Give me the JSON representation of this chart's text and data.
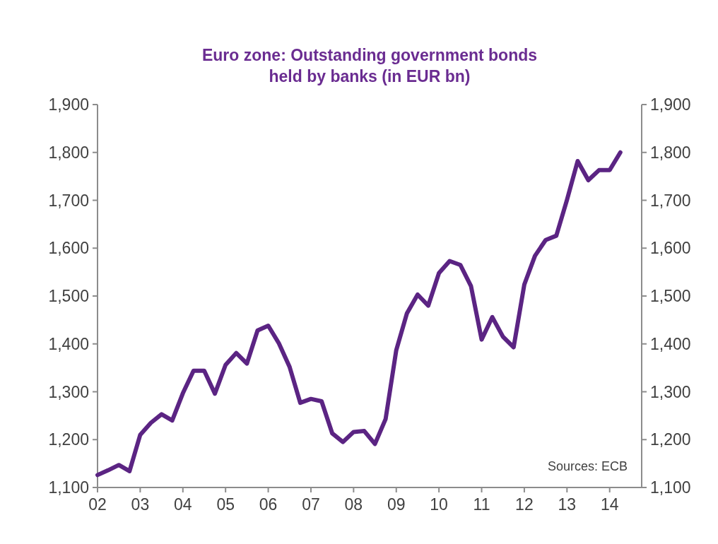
{
  "chart_data": {
    "type": "line",
    "title": "Euro zone: Outstanding government bonds held by banks (in EUR bn)",
    "x": [
      2002,
      2002.25,
      2002.5,
      2002.75,
      2003,
      2003.25,
      2003.5,
      2003.75,
      2004,
      2004.25,
      2004.5,
      2004.75,
      2005,
      2005.25,
      2005.5,
      2005.75,
      2006,
      2006.25,
      2006.5,
      2006.75,
      2007,
      2007.25,
      2007.5,
      2007.75,
      2008,
      2008.25,
      2008.5,
      2008.75,
      2009,
      2009.25,
      2009.5,
      2009.75,
      2010,
      2010.25,
      2010.5,
      2010.75,
      2011,
      2011.25,
      2011.5,
      2011.75,
      2012,
      2012.25,
      2012.5,
      2012.75,
      2013,
      2013.25,
      2013.5,
      2013.75,
      2014,
      2014.25
    ],
    "series": [
      {
        "color": "#5b2483",
        "values": [
          1126,
          1136,
          1147,
          1134,
          1210,
          1235,
          1253,
          1240,
          1297,
          1344,
          1344,
          1296,
          1356,
          1381,
          1359,
          1428,
          1438,
          1401,
          1352,
          1277,
          1285,
          1280,
          1213,
          1195,
          1216,
          1218,
          1191,
          1243,
          1387,
          1464,
          1503,
          1480,
          1548,
          1573,
          1565,
          1521,
          1409,
          1456,
          1415,
          1393,
          1524,
          1584,
          1617,
          1626,
          1701,
          1782,
          1742,
          1763,
          1763,
          1800
        ]
      }
    ],
    "xlim": [
      2002,
      2014.75
    ],
    "xticks": [
      {
        "value": 2002,
        "label": "02"
      },
      {
        "value": 2003,
        "label": "03"
      },
      {
        "value": 2004,
        "label": "04"
      },
      {
        "value": 2005,
        "label": "05"
      },
      {
        "value": 2006,
        "label": "06"
      },
      {
        "value": 2007,
        "label": "07"
      },
      {
        "value": 2008,
        "label": "08"
      },
      {
        "value": 2009,
        "label": "09"
      },
      {
        "value": 2010,
        "label": "10"
      },
      {
        "value": 2011,
        "label": "11"
      },
      {
        "value": 2012,
        "label": "12"
      },
      {
        "value": 2013,
        "label": "13"
      },
      {
        "value": 2014,
        "label": "14"
      }
    ],
    "ylim": [
      1100,
      1900
    ],
    "yticks": [
      {
        "value": 1100,
        "label": "1,100"
      },
      {
        "value": 1200,
        "label": "1,200"
      },
      {
        "value": 1300,
        "label": "1,300"
      },
      {
        "value": 1400,
        "label": "1,400"
      },
      {
        "value": 1500,
        "label": "1,500"
      },
      {
        "value": 1600,
        "label": "1,600"
      },
      {
        "value": 1700,
        "label": "1,700"
      },
      {
        "value": 1800,
        "label": "1,800"
      },
      {
        "value": 1900,
        "label": "1,900"
      }
    ],
    "y2lim": [
      1100,
      1900
    ],
    "y2ticks": [
      {
        "value": 1100,
        "label": "1,100"
      },
      {
        "value": 1200,
        "label": "1,200"
      },
      {
        "value": 1300,
        "label": "1,300"
      },
      {
        "value": 1400,
        "label": "1,400"
      },
      {
        "value": 1500,
        "label": "1,500"
      },
      {
        "value": 1600,
        "label": "1,600"
      },
      {
        "value": 1700,
        "label": "1,700"
      },
      {
        "value": 1800,
        "label": "1,800"
      },
      {
        "value": 1900,
        "label": "1,900"
      }
    ],
    "annotations": [
      "Sources: ECB"
    ]
  }
}
